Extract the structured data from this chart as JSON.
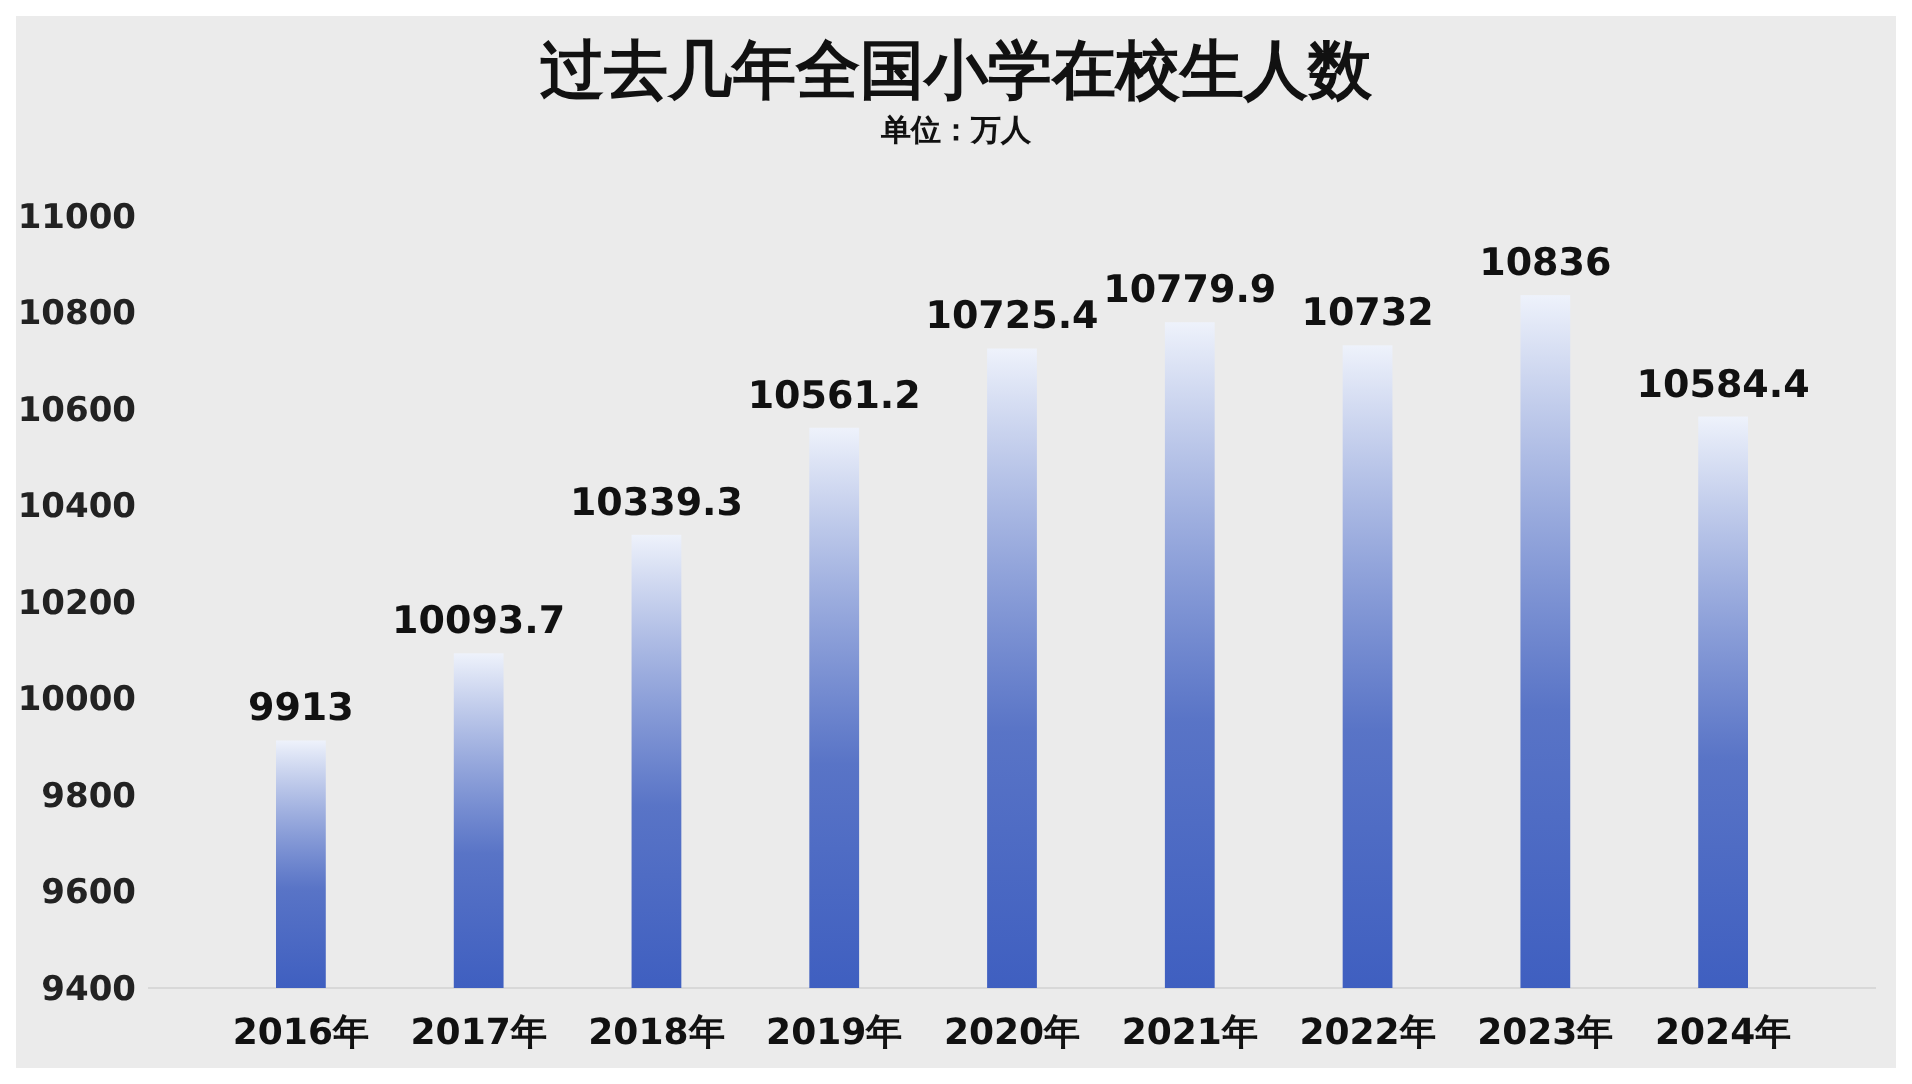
{
  "chart_data": {
    "type": "bar",
    "title": "过去几年全国小学在校生人数",
    "subtitle": "单位：万人",
    "categories": [
      "2016年",
      "2017年",
      "2018年",
      "2019年",
      "2020年",
      "2021年",
      "2022年",
      "2023年",
      "2024年"
    ],
    "values": [
      9913,
      10093.7,
      10339.3,
      10561.2,
      10725.4,
      10779.9,
      10732,
      10836,
      10584.4
    ],
    "color": "#3f5fc0",
    "ylim": [
      9400,
      11000
    ],
    "yticks": [
      9400,
      9600,
      9800,
      10000,
      10200,
      10400,
      10600,
      10800,
      11000
    ],
    "grid": false,
    "data_labels": true
  }
}
